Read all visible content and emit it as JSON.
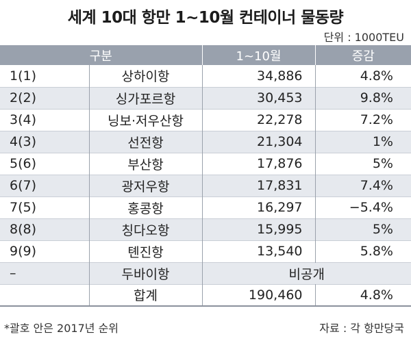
{
  "title": "세계 10대 항만 1~10월 컨테이너 물동량",
  "unit": "단위 : 1000TEU",
  "headers": {
    "category": "구분",
    "period": "1~10월",
    "change": "증감"
  },
  "rows": [
    {
      "rank": "1(1)",
      "port": "상하이항",
      "volume": "34,886",
      "change": "4.8%"
    },
    {
      "rank": "2(2)",
      "port": "싱가포르항",
      "volume": "30,453",
      "change": "9.8%"
    },
    {
      "rank": "3(4)",
      "port": "닝보·저우산항",
      "volume": "22,278",
      "change": "7.2%"
    },
    {
      "rank": "4(3)",
      "port": "선전항",
      "volume": "21,304",
      "change": "1%"
    },
    {
      "rank": "5(6)",
      "port": "부산항",
      "volume": "17,876",
      "change": "5%"
    },
    {
      "rank": "6(7)",
      "port": "광저우항",
      "volume": "17,831",
      "change": "7.4%"
    },
    {
      "rank": "7(5)",
      "port": "홍콩항",
      "volume": "16,297",
      "change": "−5.4%"
    },
    {
      "rank": "8(8)",
      "port": "칭다오항",
      "volume": "15,995",
      "change": "5%"
    },
    {
      "rank": "9(9)",
      "port": "톈진항",
      "volume": "13,540",
      "change": "5.8%"
    }
  ],
  "dubai": {
    "rank": "–",
    "port": "두바이항",
    "value": "비공개"
  },
  "total": {
    "rank": "",
    "label": "합계",
    "volume": "190,460",
    "change": "4.8%"
  },
  "footnote": "*괄호 안은 2017년 순위",
  "source": "자료 : 각 항만당국"
}
